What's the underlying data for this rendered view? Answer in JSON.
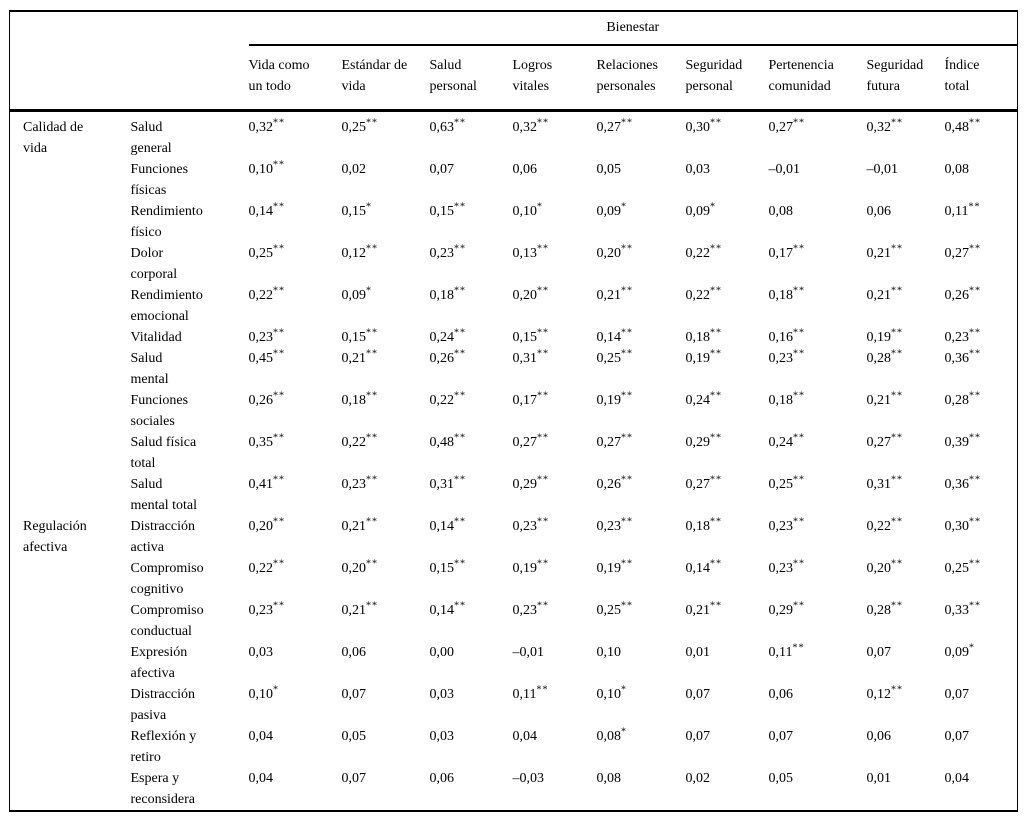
{
  "table": {
    "spanner": "Bienestar",
    "columns": [
      "Vida como un todo",
      "Estándar de vida",
      "Salud personal",
      "Logros vitales",
      "Relaciones personales",
      "Seguridad personal",
      "Pertenencia comunidad",
      "Seguridad futura",
      "Índice total"
    ],
    "groups": [
      {
        "name": "Calidad de vida",
        "rows": [
          {
            "label": "Salud general",
            "values": [
              "0,32**",
              "0,25**",
              "0,63**",
              "0,32**",
              "0,27**",
              "0,30**",
              "0,27**",
              "0,32**",
              "0,48**"
            ]
          },
          {
            "label": "Funciones físicas",
            "values": [
              "0,10**",
              "0,02",
              "0,07",
              "0,06",
              "0,05",
              "0,03",
              "–0,01",
              "–0,01",
              "0,08"
            ]
          },
          {
            "label": "Rendimiento físico",
            "values": [
              "0,14**",
              "0,15*",
              "0,15**",
              "0,10*",
              "0,09*",
              "0,09*",
              "0,08",
              "0,06",
              "0,11**"
            ]
          },
          {
            "label": "Dolor corporal",
            "values": [
              "0,25**",
              "0,12**",
              "0,23**",
              "0,13**",
              "0,20**",
              "0,22**",
              "0,17**",
              "0,21**",
              "0,27**"
            ]
          },
          {
            "label": "Rendimiento emocional",
            "values": [
              "0,22**",
              "0,09*",
              "0,18**",
              "0,20**",
              "0,21**",
              "0,22**",
              "0,18**",
              "0,21**",
              "0,26**"
            ]
          },
          {
            "label": "Vitalidad",
            "values": [
              "0,23**",
              "0,15**",
              "0,24**",
              "0,15**",
              "0,14**",
              "0,18**",
              "0,16**",
              "0,19**",
              "0,23**"
            ]
          },
          {
            "label": "Salud mental",
            "values": [
              "0,45**",
              "0,21**",
              "0,26**",
              "0,31**",
              "0,25**",
              "0,19**",
              "0,23**",
              "0,28**",
              "0,36**"
            ]
          },
          {
            "label": "Funciones sociales",
            "values": [
              "0,26**",
              "0,18**",
              "0,22**",
              "0,17**",
              "0,19**",
              "0,24**",
              "0,18**",
              "0,21**",
              "0,28**"
            ]
          },
          {
            "label": "Salud física total",
            "values": [
              "0,35**",
              "0,22**",
              "0,48**",
              "0,27**",
              "0,27**",
              "0,29**",
              "0,24**",
              "0,27**",
              "0,39**"
            ]
          },
          {
            "label": "Salud mental total",
            "values": [
              "0,41**",
              "0,23**",
              "0,31**",
              "0,29**",
              "0,26**",
              "0,27**",
              "0,25**",
              "0,31**",
              "0,36**"
            ]
          }
        ]
      },
      {
        "name": "Regulación afectiva",
        "rows": [
          {
            "label": "Distracción activa",
            "values": [
              "0,20**",
              "0,21**",
              "0,14**",
              "0,23**",
              "0,23**",
              "0,18**",
              "0,23**",
              "0,22**",
              "0,30**"
            ]
          },
          {
            "label": "Compromiso cognitivo",
            "values": [
              "0,22**",
              "0,20**",
              "0,15**",
              "0,19**",
              "0,19**",
              "0,14**",
              "0,23**",
              "0,20**",
              "0,25**"
            ]
          },
          {
            "label": "Compromiso conductual",
            "values": [
              "0,23**",
              "0,21**",
              "0,14**",
              "0,23**",
              "0,25**",
              "0,21**",
              "0,29**",
              "0,28**",
              "0,33**"
            ]
          },
          {
            "label": "Expresión afectiva",
            "values": [
              "0,03",
              "0,06",
              "0,00",
              "–0,01",
              "0,10",
              "0,01",
              "0,11**",
              "0,07",
              "0,09*"
            ]
          },
          {
            "label": "Distracción pasiva",
            "values": [
              "0,10*",
              "0,07",
              "0,03",
              "0,11**",
              "0,10*",
              "0,07",
              "0,06",
              "0,12**",
              "0,07"
            ]
          },
          {
            "label": "Reflexión y retiro",
            "values": [
              "0,04",
              "0,05",
              "0,03",
              "0,04",
              "0,08*",
              "0,07",
              "0,07",
              "0,06",
              "0,07"
            ]
          },
          {
            "label": "Espera y reconsidera",
            "values": [
              "0,04",
              "0,07",
              "0,06",
              "–0,03",
              "0,08",
              "0,02",
              "0,05",
              "0,01",
              "0,04"
            ]
          }
        ]
      }
    ]
  }
}
